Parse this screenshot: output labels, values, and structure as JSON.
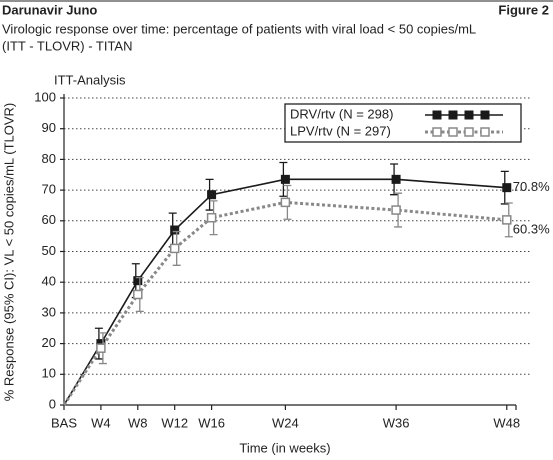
{
  "chart_data": {
    "type": "line",
    "header": "Darunavir Juno",
    "figure_label": "Figure 2",
    "title": [
      "Virologic response over time: percentage of patients with viral load < 50 copies/mL",
      "(ITT - TLOVR) - TITAN"
    ],
    "subtitle": "ITT-Analysis",
    "x_label": "Time (in weeks)",
    "y_label": "% Response (95% CI): VL < 50 copies/mL (TLOVR)",
    "x": [
      0,
      4,
      8,
      12,
      16,
      24,
      36,
      48
    ],
    "xlim": [
      0,
      49
    ],
    "xticks": [
      {
        "value": 0,
        "label": "BAS"
      },
      {
        "value": 4,
        "label": "W4"
      },
      {
        "value": 8,
        "label": "W8"
      },
      {
        "value": 12,
        "label": "W12"
      },
      {
        "value": 16,
        "label": "W16"
      },
      {
        "value": 24,
        "label": "W24"
      },
      {
        "value": 36,
        "label": "W36"
      },
      {
        "value": 48,
        "label": "W48"
      }
    ],
    "ylim": [
      0,
      100
    ],
    "yticks": [
      0,
      10,
      20,
      30,
      40,
      50,
      60,
      70,
      80,
      90,
      100
    ],
    "grid": true,
    "legend": "top-right",
    "series": [
      {
        "name": "DRV/rtv (N = 298)",
        "color": "#1a1a1a",
        "line_style": "solid",
        "marker": "filled-square",
        "values": [
          0,
          20,
          40.5,
          57,
          68.5,
          73.5,
          73.5,
          70.8
        ],
        "errors": [
          0,
          5,
          5.5,
          5.5,
          5,
          5.5,
          5,
          5.3
        ],
        "value_labels": [
          null,
          null,
          null,
          null,
          null,
          null,
          null,
          "70.8%"
        ]
      },
      {
        "name": "LPV/rtv (N = 297)",
        "color": "#888888",
        "line_style": "dotted",
        "marker": "open-square",
        "values": [
          0,
          18.5,
          36,
          51,
          61,
          66,
          63.5,
          60.3
        ],
        "errors": [
          0,
          5,
          5.5,
          5.5,
          5.5,
          5.5,
          5.5,
          5.5
        ],
        "value_labels": [
          null,
          null,
          null,
          null,
          null,
          null,
          null,
          "60.3%"
        ]
      }
    ]
  }
}
